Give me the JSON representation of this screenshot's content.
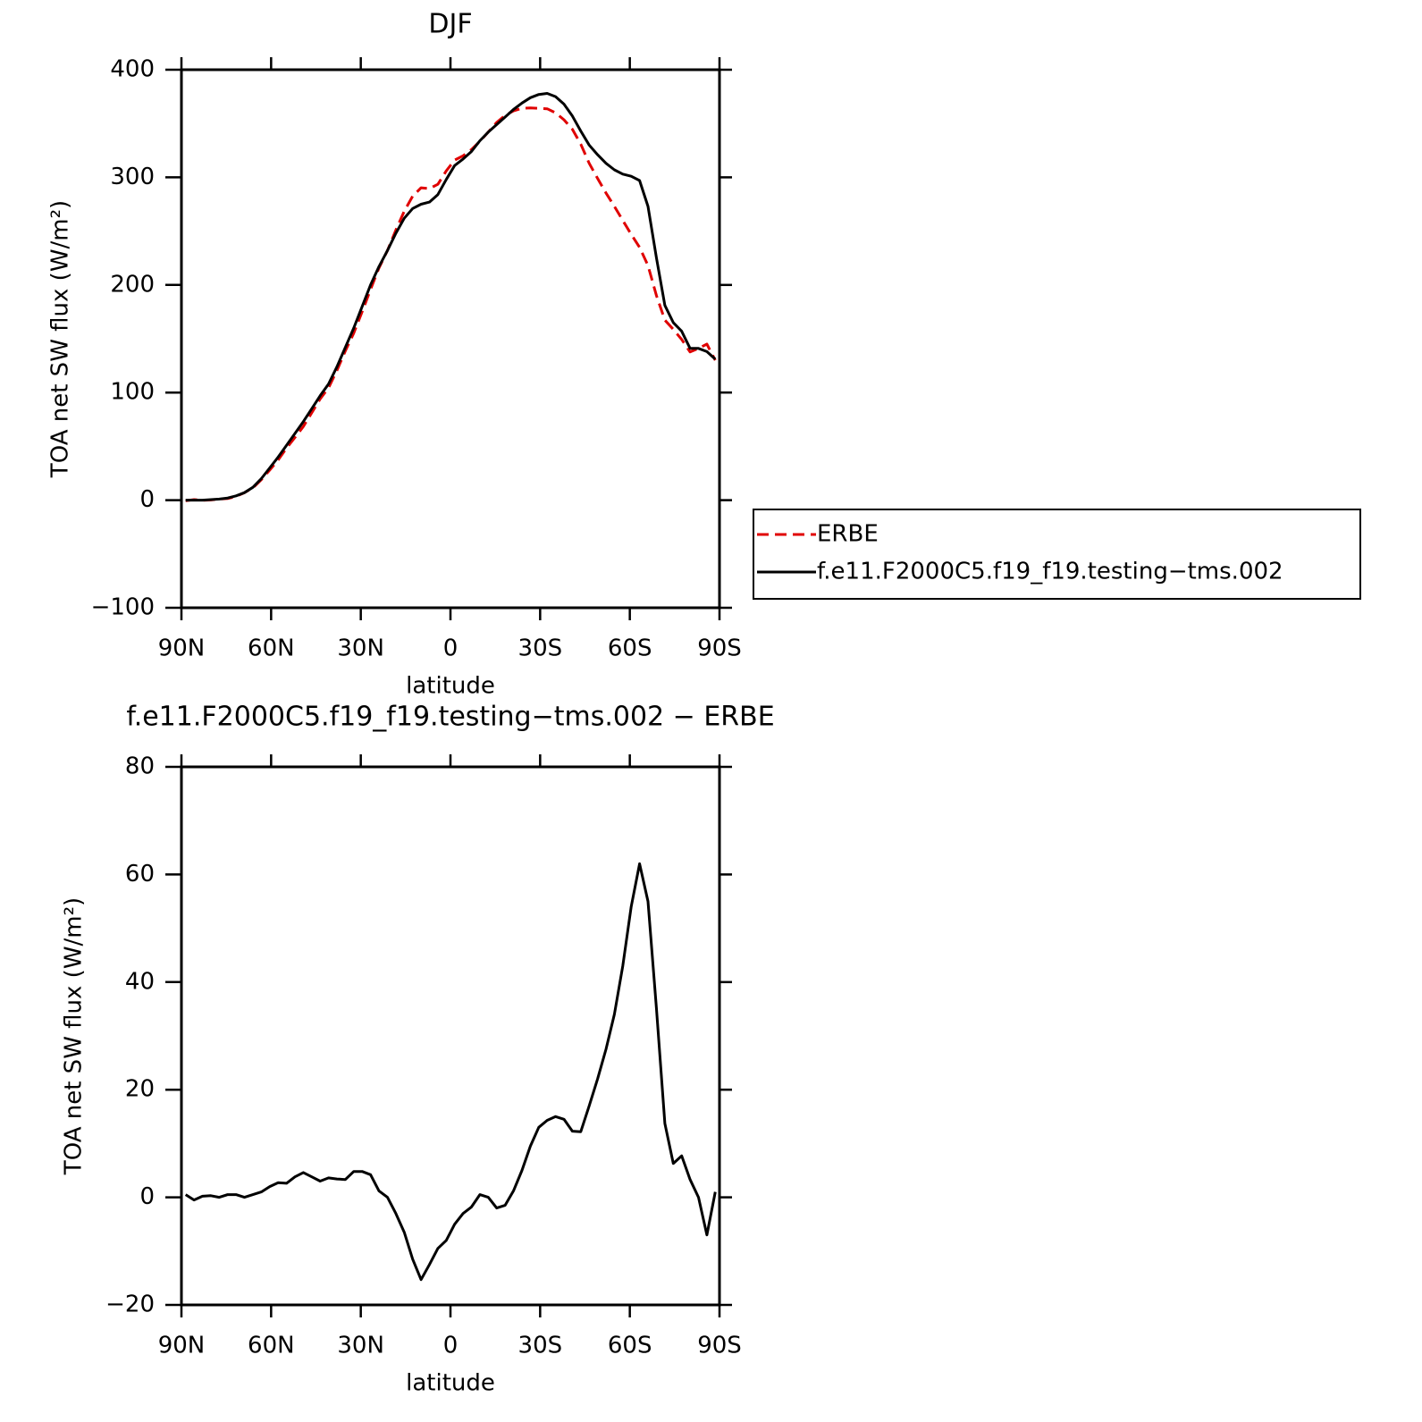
{
  "chart_data": [
    {
      "type": "line",
      "title": "DJF",
      "xlabel": "latitude",
      "ylabel": "TOA net SW flux (W/m²)",
      "x": [
        88.59,
        85.78,
        82.97,
        80.16,
        77.34,
        74.53,
        71.72,
        68.91,
        66.09,
        63.28,
        60.47,
        57.66,
        54.84,
        52.03,
        49.22,
        46.41,
        43.59,
        40.78,
        37.97,
        35.16,
        32.34,
        29.53,
        26.72,
        23.91,
        21.09,
        18.28,
        15.47,
        12.66,
        9.84,
        7.03,
        4.22,
        1.41,
        -1.41,
        -4.22,
        -7.03,
        -9.84,
        -12.66,
        -15.47,
        -18.28,
        -21.09,
        -23.91,
        -26.72,
        -29.53,
        -32.34,
        -35.16,
        -37.97,
        -40.78,
        -43.59,
        -46.41,
        -49.22,
        -52.03,
        -54.84,
        -57.66,
        -60.47,
        -63.28,
        -66.09,
        -68.91,
        -71.72,
        -74.53,
        -77.34,
        -80.16,
        -82.97,
        -85.78,
        -88.59
      ],
      "series": [
        {
          "name": "ERBE",
          "color": "#e00000",
          "dashed": true,
          "values": [
            -0.5,
            0.5,
            -0.2,
            0.2,
            1,
            1.5,
            3.5,
            7,
            11.5,
            19,
            28,
            37.3,
            48.4,
            58.2,
            68.4,
            81.2,
            94,
            104.4,
            120.6,
            138.7,
            155.2,
            175.2,
            195.8,
            215.8,
            232,
            251,
            268.5,
            282.5,
            290.3,
            289.5,
            293.5,
            306,
            316,
            320,
            325.8,
            333.5,
            342,
            351,
            357.5,
            361.8,
            364,
            364.5,
            364,
            363.7,
            360,
            353.5,
            344.7,
            330.8,
            313,
            299,
            285.5,
            273,
            260,
            247,
            235,
            218,
            190,
            167.3,
            158.7,
            149.3,
            137.7,
            141,
            145,
            130
          ]
        },
        {
          "name": "f.e11.F2000C5.f19_f19.testing−tms.002",
          "color": "#000000",
          "dashed": false,
          "values": [
            0,
            0,
            0,
            0.5,
            1,
            2,
            4,
            7,
            12,
            20,
            30,
            40,
            51,
            62,
            73,
            85,
            97,
            108,
            124,
            142,
            160,
            180,
            200,
            217,
            232,
            248,
            262,
            271,
            275,
            277,
            284,
            298,
            311,
            317,
            324,
            334,
            342,
            349,
            356,
            363,
            369,
            374,
            377,
            378,
            375,
            368,
            357,
            343,
            330,
            321,
            313,
            307,
            303,
            301,
            297,
            273,
            225,
            181,
            165,
            157,
            141,
            141,
            138,
            131
          ]
        }
      ],
      "xlim": [
        90,
        -90
      ],
      "xticks": [
        {
          "value": 90,
          "label": "90N"
        },
        {
          "value": 60,
          "label": "60N"
        },
        {
          "value": 30,
          "label": "30N"
        },
        0,
        {
          "value": -30,
          "label": "30S"
        },
        {
          "value": -60,
          "label": "60S"
        },
        {
          "value": -90,
          "label": "90S"
        }
      ],
      "ylim": [
        -100,
        400
      ],
      "yticks": [
        {
          "value": -100,
          "label": "−100"
        },
        0,
        100,
        200,
        300,
        400
      ],
      "legend": "right"
    },
    {
      "type": "line",
      "title": "f.e11.F2000C5.f19_f19.testing−tms.002 − ERBE",
      "xlabel": "latitude",
      "ylabel": "TOA net SW flux (W/m²)",
      "x": [
        88.59,
        85.78,
        82.97,
        80.16,
        77.34,
        74.53,
        71.72,
        68.91,
        66.09,
        63.28,
        60.47,
        57.66,
        54.84,
        52.03,
        49.22,
        46.41,
        43.59,
        40.78,
        37.97,
        35.16,
        32.34,
        29.53,
        26.72,
        23.91,
        21.09,
        18.28,
        15.47,
        12.66,
        9.84,
        7.03,
        4.22,
        1.41,
        -1.41,
        -4.22,
        -7.03,
        -9.84,
        -12.66,
        -15.47,
        -18.28,
        -21.09,
        -23.91,
        -26.72,
        -29.53,
        -32.34,
        -35.16,
        -37.97,
        -40.78,
        -43.59,
        -46.41,
        -49.22,
        -52.03,
        -54.84,
        -57.66,
        -60.47,
        -63.28,
        -66.09,
        -68.91,
        -71.72,
        -74.53,
        -77.34,
        -80.16,
        -82.97,
        -85.78,
        -88.59
      ],
      "values": [
        0.5,
        -0.5,
        0.2,
        0.3,
        0,
        0.5,
        0.5,
        0,
        0.5,
        1,
        2,
        2.7,
        2.6,
        3.8,
        4.6,
        3.8,
        3,
        3.6,
        3.4,
        3.3,
        4.8,
        4.8,
        4.2,
        1.2,
        0,
        -3,
        -6.5,
        -11.5,
        -15.3,
        -12.5,
        -9.5,
        -8,
        -5,
        -3,
        -1.8,
        0.5,
        0,
        -2,
        -1.5,
        1.2,
        5,
        9.5,
        13,
        14.3,
        15,
        14.5,
        12.3,
        12.2,
        17,
        22,
        27.5,
        34,
        43,
        54,
        62,
        55,
        35,
        13.7,
        6.3,
        7.7,
        3.3,
        0,
        -7,
        1
      ],
      "color": "#000000",
      "xlim": [
        90,
        -90
      ],
      "xticks": [
        {
          "value": 90,
          "label": "90N"
        },
        {
          "value": 60,
          "label": "60N"
        },
        {
          "value": 30,
          "label": "30N"
        },
        0,
        {
          "value": -30,
          "label": "30S"
        },
        {
          "value": -60,
          "label": "60S"
        },
        {
          "value": -90,
          "label": "90S"
        }
      ],
      "ylim": [
        -20,
        80
      ],
      "yticks": [
        {
          "value": -20,
          "label": "−20"
        },
        0,
        20,
        40,
        60,
        80
      ]
    }
  ]
}
